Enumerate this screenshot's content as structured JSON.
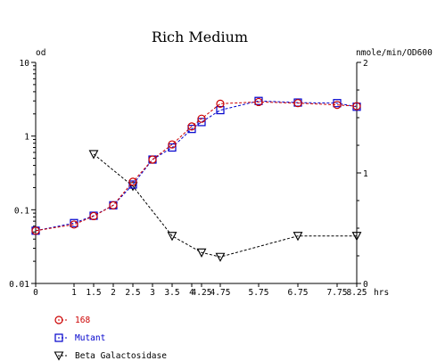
{
  "chart_data": {
    "type": "line",
    "title": "Rich Medium",
    "left_axis_unit": "od",
    "right_axis_unit": "nmole/min/OD600",
    "x_unit": "hrs",
    "x_ticks": [
      0,
      1,
      1.5,
      2,
      2.5,
      3,
      3.5,
      4,
      4.25,
      4.75,
      5.75,
      6.75,
      7.75,
      8.25
    ],
    "x_tick_labels": [
      "0",
      "1",
      "1.5",
      "2",
      "2.5",
      "3",
      "3.5",
      "4",
      "4.25",
      "4.75",
      "5.75",
      "6.75",
      "7.75",
      "8.25"
    ],
    "y_left_scale": "log",
    "y_left_range": [
      0.01,
      10
    ],
    "y_left_tick_labels": [
      "10",
      "1",
      "0.1",
      "0.01"
    ],
    "y_left_ticks": [
      10,
      1,
      0.1,
      0.01
    ],
    "y_right_range": [
      0,
      2
    ],
    "y_right_tick_labels": [
      "2",
      "1",
      "0"
    ],
    "y_right_ticks": [
      2,
      1,
      0
    ],
    "grid": false,
    "legend_position": "bottom-left",
    "series": [
      {
        "name": "168",
        "axis": "left",
        "marker": "circle",
        "color": "#cc0000",
        "x": [
          0,
          1,
          1.5,
          2,
          2.5,
          3,
          3.5,
          4,
          4.25,
          4.75,
          5.75,
          6.75,
          7.75,
          8.25
        ],
        "y": [
          0.052,
          0.063,
          0.082,
          0.115,
          0.24,
          0.48,
          0.77,
          1.35,
          1.72,
          2.75,
          2.9,
          2.8,
          2.65,
          2.55
        ]
      },
      {
        "name": "Mutant",
        "axis": "left",
        "marker": "square",
        "color": "#0000cc",
        "x": [
          0,
          1,
          1.5,
          2,
          2.5,
          3,
          3.5,
          4,
          4.25,
          4.75,
          5.75,
          6.75,
          7.75,
          8.25
        ],
        "y": [
          0.052,
          0.066,
          0.083,
          0.115,
          0.22,
          0.48,
          0.7,
          1.25,
          1.55,
          2.25,
          3.0,
          2.85,
          2.8,
          2.5
        ]
      },
      {
        "name": "Beta Galactosidase",
        "axis": "right",
        "marker": "triangle-down",
        "color": "#000000",
        "x": [
          1.5,
          2.5,
          3.5,
          4.25,
          4.75,
          6.75,
          8.25
        ],
        "y": [
          1.17,
          0.88,
          0.43,
          0.28,
          0.24,
          0.43,
          0.43
        ]
      }
    ]
  }
}
